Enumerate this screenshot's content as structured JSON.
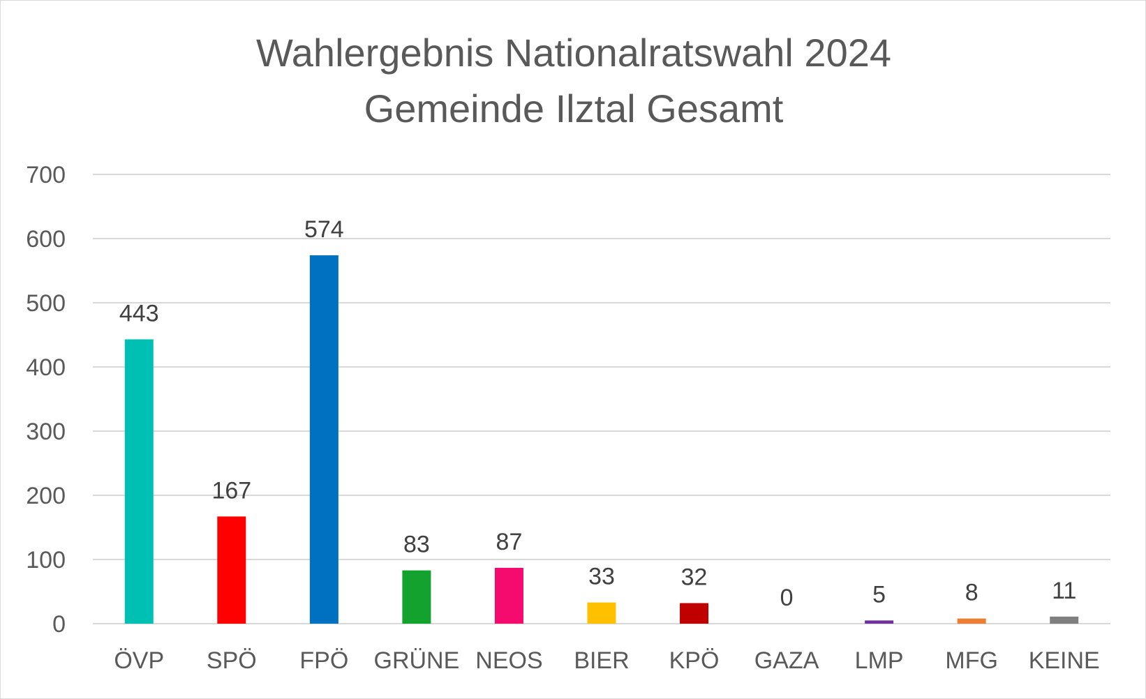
{
  "chart_data": {
    "type": "bar",
    "title": "Wahlergebnis Nationalratswahl 2024",
    "subtitle": "Gemeinde Ilztal Gesamt",
    "xlabel": "",
    "ylabel": "",
    "ylim": [
      0,
      700
    ],
    "yticks": [
      0,
      100,
      200,
      300,
      400,
      500,
      600,
      700
    ],
    "grid": true,
    "legend": "none",
    "categories": [
      "ÖVP",
      "SPÖ",
      "FPÖ",
      "GRÜNE",
      "NEOS",
      "BIER",
      "KPÖ",
      "GAZA",
      "LMP",
      "MFG",
      "KEINE"
    ],
    "values": [
      443,
      167,
      574,
      83,
      87,
      33,
      32,
      0,
      5,
      8,
      11
    ],
    "colors": [
      "#00BFB3",
      "#FF0000",
      "#0070C0",
      "#12A22D",
      "#F50A6E",
      "#FFC000",
      "#C00000",
      "#7F7F7F",
      "#7030A0",
      "#ED7D31",
      "#7F7F7F"
    ]
  }
}
